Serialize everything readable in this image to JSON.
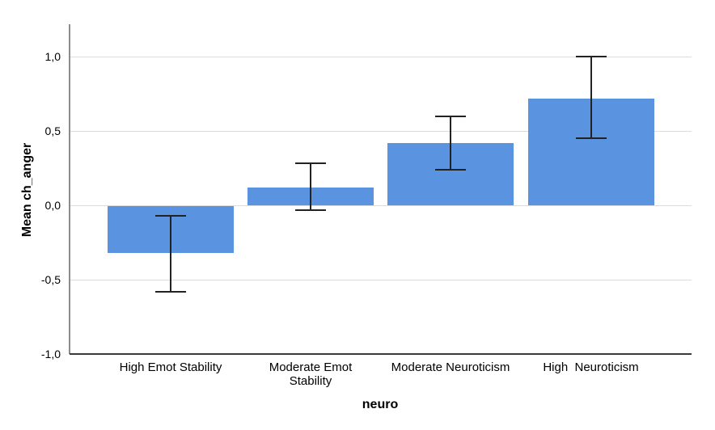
{
  "chart_data": {
    "type": "bar",
    "title": "",
    "xlabel": "neuro",
    "ylabel": "Mean ch_anger",
    "categories": [
      "High Emot Stability",
      "Moderate Emot Stability",
      "Moderate Neuroticism",
      "High  Neuroticism"
    ],
    "values": [
      -0.32,
      0.12,
      0.42,
      0.72
    ],
    "error_low": [
      -0.58,
      -0.03,
      0.24,
      0.45
    ],
    "error_high": [
      -0.07,
      0.28,
      0.6,
      1.0
    ],
    "yticks": [
      1.0,
      0.5,
      0.0,
      -0.5,
      -1.0
    ],
    "ytick_labels": [
      "1,0",
      "0,5",
      "0,0",
      "-0,5",
      "-1,0"
    ],
    "ylim": [
      -1.0,
      1.2
    ],
    "grid": true,
    "legend": false,
    "decimal_separator": ",",
    "bar_color": "#5A94E1",
    "error_bar_color": "#222222",
    "gridline_color": "#DCDCDC",
    "yaxis_line_color": "#8C8C8C",
    "xaxis_line_color": "#3A3A3A"
  }
}
